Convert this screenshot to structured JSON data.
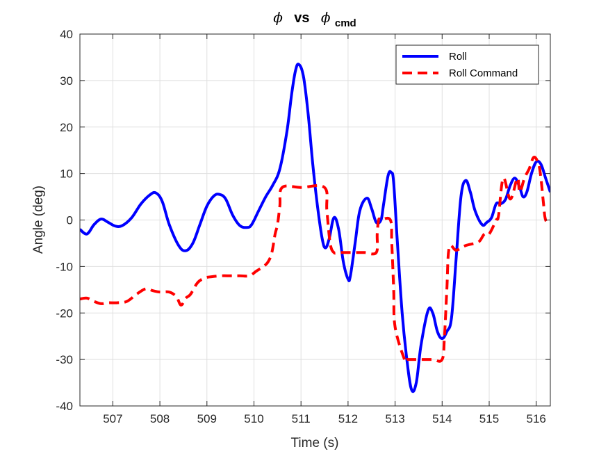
{
  "chart_data": {
    "type": "line",
    "title": {
      "symbol": "ϕ",
      "vs": "vs",
      "symbol2": "ϕ",
      "subscript": "cmd"
    },
    "xlabel": "Time (s)",
    "ylabel": "Angle (deg)",
    "xlim": [
      506.3,
      516.3
    ],
    "ylim": [
      -40,
      40
    ],
    "xticks": [
      507,
      508,
      509,
      510,
      511,
      512,
      513,
      514,
      515,
      516
    ],
    "yticks": [
      -40,
      -30,
      -20,
      -10,
      0,
      10,
      20,
      30,
      40
    ],
    "grid": true,
    "legend_position": "top-right",
    "series": [
      {
        "name": "Roll",
        "color": "#0000ff",
        "style": "solid",
        "x": [
          506.3,
          506.45,
          506.6,
          506.75,
          506.9,
          507.05,
          507.2,
          507.4,
          507.6,
          507.8,
          507.92,
          508.05,
          508.2,
          508.4,
          508.55,
          508.7,
          508.85,
          509.0,
          509.15,
          509.27,
          509.4,
          509.55,
          509.7,
          509.85,
          509.95,
          510.1,
          510.25,
          510.4,
          510.55,
          510.7,
          510.8,
          510.88,
          510.95,
          511.05,
          511.15,
          511.25,
          511.35,
          511.45,
          511.52,
          511.6,
          511.7,
          511.8,
          511.9,
          512.0,
          512.05,
          512.15,
          512.25,
          512.4,
          512.5,
          512.6,
          512.7,
          512.75,
          512.85,
          512.92,
          512.97,
          513.05,
          513.15,
          513.25,
          513.35,
          513.45,
          513.55,
          513.7,
          513.8,
          513.9,
          514.0,
          514.1,
          514.2,
          514.3,
          514.4,
          514.5,
          514.6,
          514.7,
          514.85,
          514.95,
          515.05,
          515.15,
          515.25,
          515.35,
          515.45,
          515.55,
          515.65,
          515.72,
          515.8,
          515.9,
          516.0,
          516.1,
          516.2,
          516.3
        ],
        "y": [
          -2,
          -3,
          -1,
          0.2,
          -0.5,
          -1.3,
          -1.2,
          0.5,
          3.5,
          5.5,
          5.8,
          4,
          -1,
          -5.5,
          -6.6,
          -5,
          -1,
          3,
          5.2,
          5.5,
          4.5,
          1,
          -1.2,
          -1.6,
          -1,
          2,
          5,
          7.5,
          11,
          19,
          27,
          32,
          33.5,
          31,
          23,
          12,
          3,
          -4,
          -6,
          -4,
          0.5,
          -2,
          -9,
          -12.7,
          -12,
          -5,
          2,
          4.7,
          2.5,
          -0.5,
          0,
          3,
          9.5,
          10.2,
          8,
          -5,
          -20,
          -30,
          -36.5,
          -35,
          -27,
          -19.5,
          -20,
          -24,
          -25.5,
          -24,
          -21,
          -8,
          5,
          8.5,
          6,
          2,
          -1,
          -0.5,
          0.5,
          3.5,
          3.5,
          4.5,
          7.5,
          9,
          7,
          5,
          6,
          10,
          12.5,
          12,
          9,
          6
        ]
      },
      {
        "name": "Roll Command",
        "color": "#ff0000",
        "style": "dashed",
        "x": [
          506.3,
          506.45,
          506.6,
          506.75,
          506.9,
          507.1,
          507.3,
          507.5,
          507.7,
          507.85,
          508.0,
          508.2,
          508.35,
          508.45,
          508.55,
          508.65,
          508.8,
          508.95,
          509.1,
          509.3,
          509.5,
          509.7,
          509.9,
          510.05,
          510.2,
          510.3,
          510.38,
          510.45,
          510.5,
          510.55,
          510.6,
          511.0,
          511.5,
          511.55,
          511.62,
          511.7,
          511.8,
          512.0,
          512.2,
          512.35,
          512.6,
          512.62,
          512.65,
          512.7,
          512.9,
          512.93,
          512.97,
          513.0,
          513.2,
          513.25,
          513.4,
          513.6,
          513.8,
          514.0,
          514.05,
          514.1,
          514.15,
          514.3,
          514.5,
          514.7,
          514.8,
          514.9,
          515.0,
          515.15,
          515.2,
          515.3,
          515.45,
          515.6,
          515.65,
          515.75,
          515.85,
          515.95,
          516.05,
          516.1,
          516.15,
          516.2,
          516.3
        ],
        "y": [
          -17,
          -16.8,
          -17.5,
          -18,
          -17.8,
          -17.8,
          -17.5,
          -16,
          -14.8,
          -15.2,
          -15.5,
          -15.5,
          -16.5,
          -18.3,
          -16.8,
          -16,
          -13.5,
          -12.5,
          -12.2,
          -12,
          -12,
          -12,
          -12,
          -11,
          -10,
          -9,
          -7,
          -3,
          -1,
          3,
          7,
          7,
          7,
          2,
          -5,
          -7,
          -7,
          -7,
          -7,
          -7,
          -7,
          -3,
          0,
          0,
          0,
          -5,
          -15,
          -23,
          -30,
          -30,
          -30,
          -30,
          -30,
          -30,
          -25,
          -15,
          -6,
          -6.5,
          -5.5,
          -5,
          -4.5,
          -3,
          -3,
          0,
          1,
          9,
          4.5,
          9,
          6,
          9,
          11,
          13.5,
          12,
          9,
          4,
          0,
          -0.5
        ]
      }
    ]
  }
}
